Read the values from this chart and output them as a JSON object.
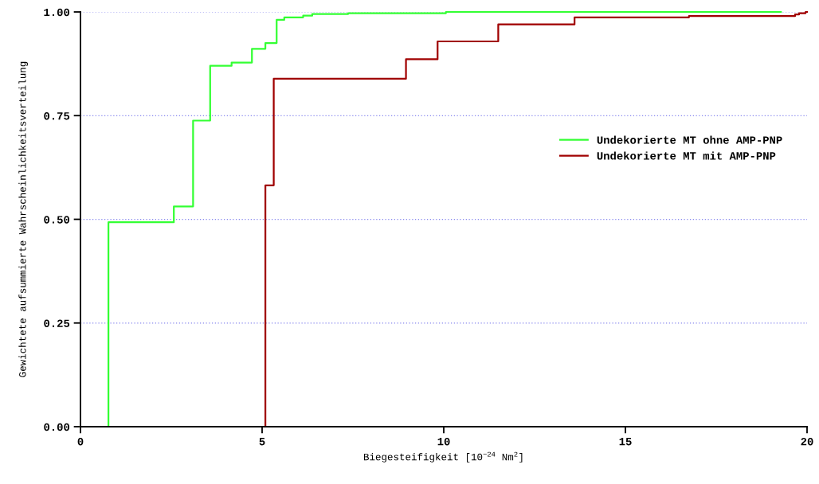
{
  "chart_data": {
    "type": "step",
    "xlabel": "Biegesteifigkeit [10$^{−24}$ Nm$^{2}$]",
    "ylabel": "Gewichtete aufsummierte Wahrscheinlichkeitsverteilung",
    "series": [
      {
        "name": "Undekorierte MT ohne AMP-PNP",
        "color": "#33ff33",
        "x": [
          0,
          0.77,
          2.57,
          3.1,
          3.57,
          4.16,
          4.72,
          5.09,
          5.4,
          5.61,
          6.13,
          6.38,
          7.37,
          10.06,
          19.28
        ],
        "values": [
          0,
          0.493,
          0.531,
          0.738,
          0.87,
          0.878,
          0.911,
          0.925,
          0.981,
          0.987,
          0.991,
          0.995,
          0.997,
          1.0,
          1.0
        ]
      },
      {
        "name": "Undekorierte MT mit AMP-PNP",
        "color": "#a00000",
        "x": [
          0,
          5.09,
          5.32,
          8.96,
          9.83,
          11.5,
          13.6,
          16.75,
          19.67,
          19.78,
          19.96,
          20
        ],
        "values": [
          0,
          0.582,
          0.839,
          0.886,
          0.929,
          0.97,
          0.987,
          0.99,
          0.994,
          0.997,
          1.0,
          1.0
        ]
      }
    ],
    "xlim": [
      0,
      20
    ],
    "xticks": [
      0,
      5,
      10,
      15,
      20
    ],
    "ylim": [
      0,
      1
    ],
    "yticks": [
      {
        "value": 0,
        "label": "0.00"
      },
      {
        "value": 0.25,
        "label": "0.25"
      },
      {
        "value": 0.5,
        "label": "0.50"
      },
      {
        "value": 0.75,
        "label": "0.75"
      },
      {
        "value": 1,
        "label": "1.00"
      }
    ],
    "grid": "y",
    "legend": "right",
    "line_style": "solid"
  }
}
